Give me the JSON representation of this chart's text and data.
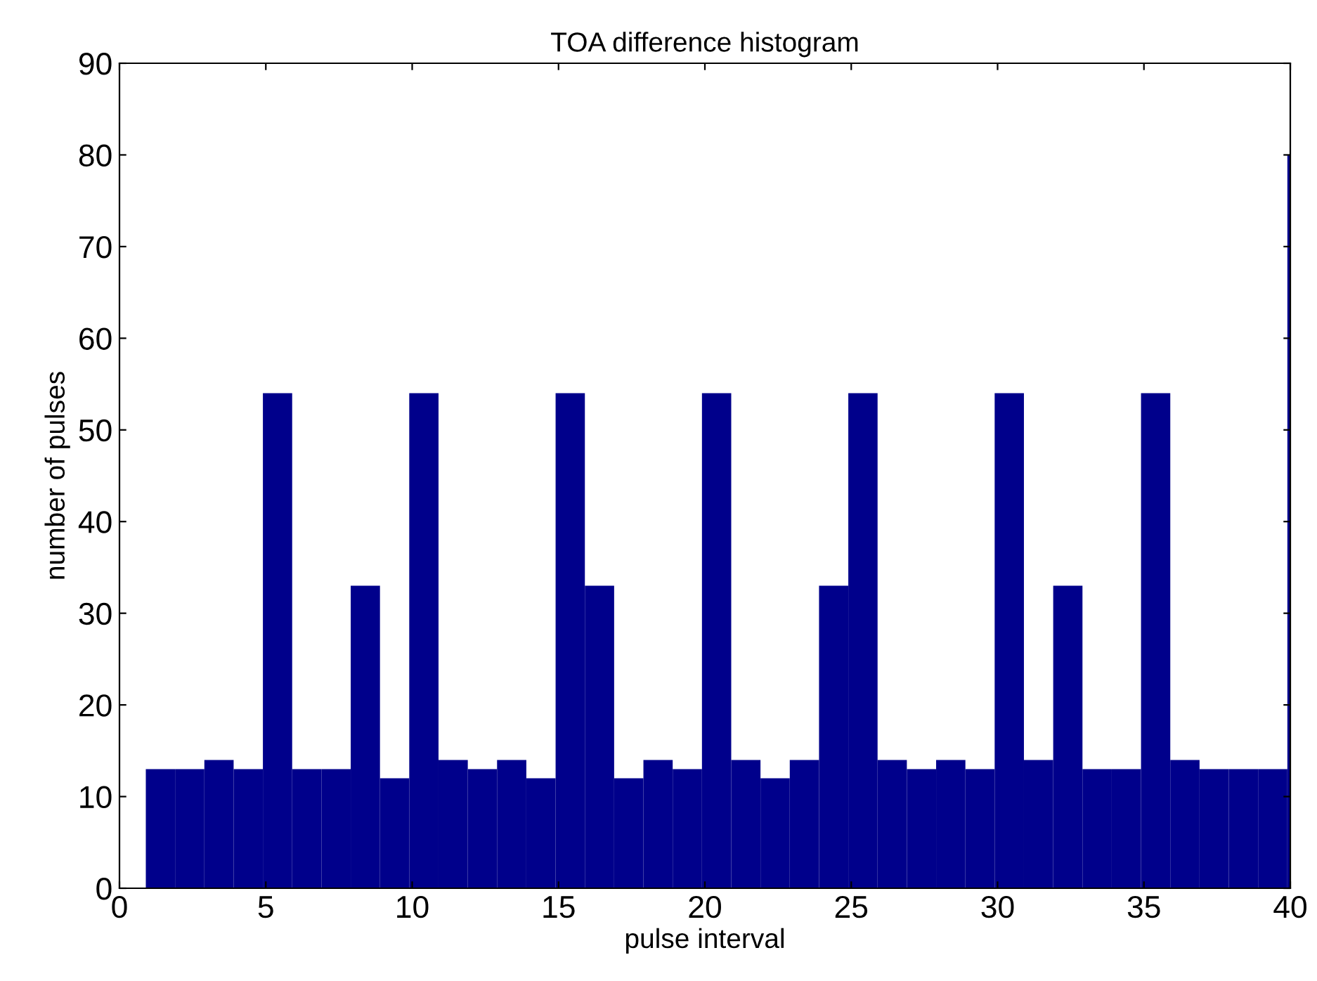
{
  "chart_data": {
    "type": "histogram",
    "title": "TOA difference histogram",
    "xlabel": "pulse interval",
    "ylabel": "number of pulses",
    "bins": [
      0.9,
      1.9,
      2.9,
      3.9,
      4.9,
      5.9,
      6.9,
      7.9,
      8.9,
      9.9,
      10.9,
      11.9,
      12.9,
      13.9,
      14.9,
      15.9,
      16.9,
      17.9,
      18.9,
      19.9,
      20.9,
      21.9,
      22.9,
      23.9,
      24.9,
      25.9,
      26.9,
      27.9,
      28.9,
      29.9,
      30.9,
      31.9,
      32.9,
      33.9,
      34.9,
      35.9,
      36.9,
      37.9,
      38.9,
      39.9,
      40
    ],
    "values": [
      13,
      13,
      14,
      13,
      54,
      13,
      13,
      33,
      12,
      54,
      14,
      13,
      14,
      12,
      54,
      33,
      12,
      14,
      13,
      54,
      14,
      12,
      14,
      33,
      54,
      14,
      13,
      14,
      13,
      54,
      14,
      33,
      13,
      13,
      54,
      14,
      13,
      13,
      13,
      80
    ],
    "color": "#00008b",
    "xlim": [
      0,
      40
    ],
    "xticks": [
      0,
      5,
      10,
      15,
      20,
      25,
      30,
      35,
      40
    ],
    "ylim": [
      0,
      90
    ],
    "yticks": [
      0,
      10,
      20,
      30,
      40,
      50,
      60,
      70,
      80,
      90
    ],
    "grid": false
  }
}
